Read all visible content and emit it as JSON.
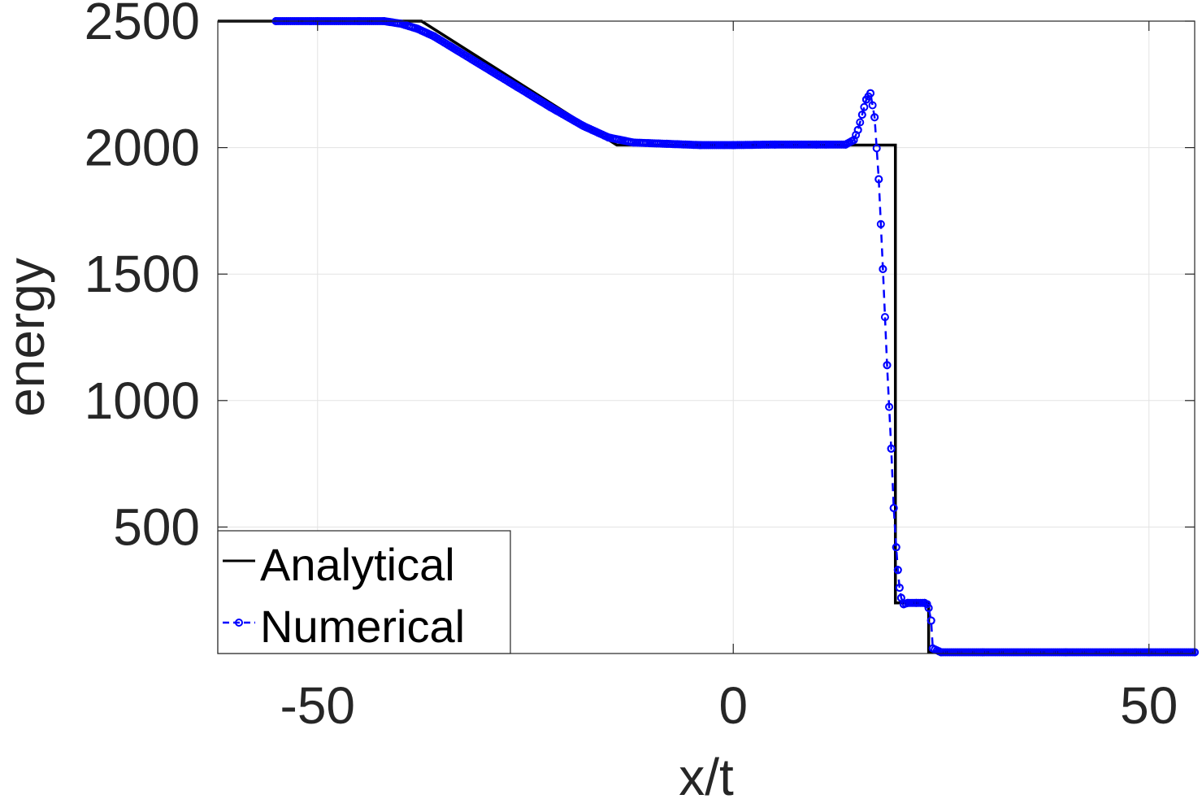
{
  "chart_data": {
    "type": "line",
    "title": "",
    "xlabel": "x/t",
    "ylabel": "energy",
    "xlim": [
      -62,
      55.5
    ],
    "ylim": [
      0,
      2500
    ],
    "xticks": [
      -50,
      0,
      50
    ],
    "yticks": [
      500,
      1000,
      1500,
      2000,
      2500
    ],
    "grid": true,
    "legend_position": "bottom-left",
    "series": [
      {
        "name": "Analytical",
        "color": "#000000",
        "style": "solid",
        "x": [
          -62,
          -37.5,
          -14,
          19.5,
          19.5,
          23.5,
          23.5,
          55.5
        ],
        "y": [
          2500,
          2500,
          2010,
          2010,
          200,
          200,
          5,
          5
        ]
      },
      {
        "name": "Numerical",
        "color": "#0000ff",
        "style": "dashed",
        "marker": "circle",
        "x": [
          -55,
          -50,
          -45,
          -42,
          -40,
          -38,
          -36,
          -34,
          -30,
          -26,
          -22,
          -18,
          -15,
          -12,
          -8,
          -4,
          0,
          5,
          10,
          13.5,
          14.5,
          15,
          15.5,
          16,
          16.5,
          17,
          17.5,
          18,
          18.5,
          19,
          19.3,
          19.6,
          19.8,
          20,
          20.2,
          20.5,
          21,
          22,
          23,
          23.3,
          23.5,
          23.8,
          24,
          25,
          30,
          40,
          50,
          55.5
        ],
        "y": [
          2500,
          2500,
          2500,
          2500,
          2490,
          2470,
          2440,
          2400,
          2320,
          2240,
          2160,
          2085,
          2040,
          2020,
          2015,
          2010,
          2010,
          2012,
          2012,
          2012,
          2030,
          2070,
          2130,
          2190,
          2215,
          2120,
          1875,
          1520,
          1140,
          810,
          575,
          420,
          330,
          260,
          220,
          195,
          200,
          200,
          200,
          195,
          180,
          130,
          20,
          5,
          5,
          5,
          5,
          5
        ]
      }
    ]
  }
}
